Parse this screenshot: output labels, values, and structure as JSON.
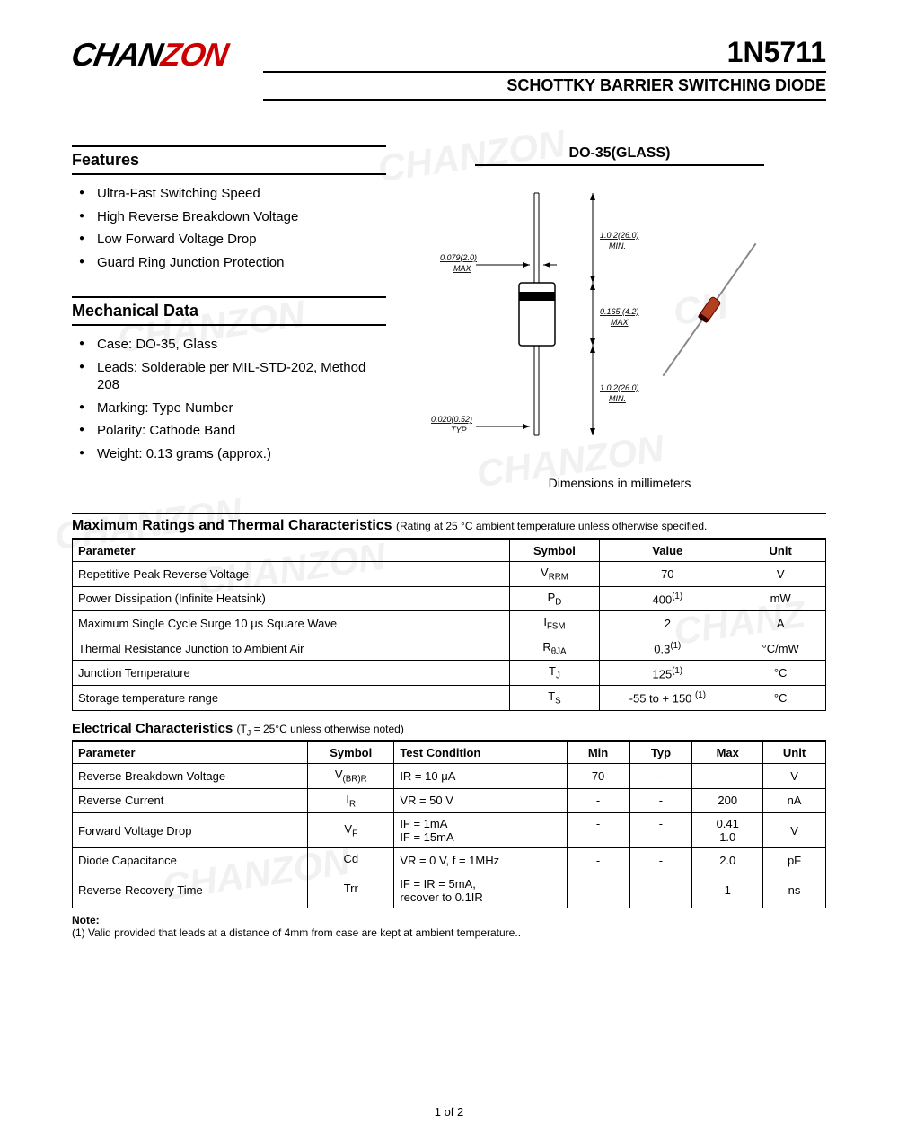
{
  "logo": {
    "part1": "CHAN",
    "part2": "ZON"
  },
  "part_number": "1N5711",
  "subtitle": "SCHOTTKY BARRIER SWITCHING DIODE",
  "features": {
    "title": "Features",
    "items": [
      "Ultra-Fast Switching Speed",
      "High Reverse Breakdown Voltage",
      "Low Forward Voltage Drop",
      "Guard Ring Junction Protection"
    ]
  },
  "mechanical": {
    "title": "Mechanical Data",
    "items": [
      "Case: DO-35, Glass",
      "Leads: Solderable per MIL-STD-202, Method 208",
      "Marking: Type Number",
      "Polarity: Cathode Band",
      "Weight: 0.13 grams (approx.)"
    ]
  },
  "package": {
    "title": "DO-35(GLASS)",
    "caption": "Dimensions in millimeters",
    "dims": {
      "lead_len": "1.0 2(26.0)\nMIN.",
      "lead_dia": "0.079(2.0)\nMAX",
      "body_len": "0.165 (4.2)\nMAX",
      "cathode_band": "0.020(0.52)\nTYP"
    }
  },
  "max_ratings": {
    "title": "Maximum Ratings and Thermal Characteristics",
    "note": "(Rating at  25 °C ambient temperature unless otherwise specified.",
    "columns": [
      "Parameter",
      "Symbol",
      "Value",
      "Unit"
    ],
    "rows": [
      {
        "param": "Repetitive Peak Reverse Voltage",
        "symbol": "V",
        "symsub": "RRM",
        "value": "70",
        "unit": "V"
      },
      {
        "param": "Power Dissipation (Infinite Heatsink)",
        "symbol": "P",
        "symsub": "D",
        "value": "400",
        "valsup": "(1)",
        "unit": "mW"
      },
      {
        "param": "Maximum Single Cycle Surge 10 μs Square Wave",
        "symbol": "I",
        "symsub": "FSM",
        "value": "2",
        "unit": "A"
      },
      {
        "param": "Thermal Resistance Junction to Ambient Air",
        "symbol": "R",
        "symsub": "θJA",
        "value": "0.3",
        "valsup": "(1)",
        "unit": "°C/mW"
      },
      {
        "param": "Junction Temperature",
        "symbol": "T",
        "symsub": "J",
        "value": "125",
        "valsup": "(1)",
        "unit": "°C"
      },
      {
        "param": "Storage temperature range",
        "symbol": "T",
        "symsub": "S",
        "value": "-55 to + 150 ",
        "valsup": "(1)",
        "unit": "°C"
      }
    ]
  },
  "electrical": {
    "title": "Electrical Characteristics",
    "note": "(TJ = 25°C unless otherwise noted)",
    "columns": [
      "Parameter",
      "Symbol",
      "Test Condition",
      "Min",
      "Typ",
      "Max",
      "Unit"
    ],
    "rows": [
      {
        "param": "Reverse Breakdown Voltage",
        "symbol": "V",
        "symsub": "(BR)R",
        "cond": "IR = 10 μA",
        "min": "70",
        "typ": "-",
        "max": "-",
        "unit": "V"
      },
      {
        "param": "Reverse Current",
        "symbol": "I",
        "symsub": "R",
        "cond": "VR = 50 V",
        "min": "-",
        "typ": "-",
        "max": "200",
        "unit": "nA"
      },
      {
        "param": "Forward Voltage Drop",
        "symbol": "V",
        "symsub": "F",
        "cond": "IF = 1mA\nIF = 15mA",
        "min": "-\n-",
        "typ": "-\n-",
        "max": "0.41\n1.0",
        "unit": "V"
      },
      {
        "param": "Diode Capacitance",
        "symbol": "Cd",
        "symsub": "",
        "cond": "VR = 0 V, f = 1MHz",
        "min": "-",
        "typ": "-",
        "max": "2.0",
        "unit": "pF"
      },
      {
        "param": "Reverse Recovery Time",
        "symbol": "Trr",
        "symsub": "",
        "cond": "IF = IR = 5mA,\nrecover to 0.1IR",
        "min": "-",
        "typ": "-",
        "max": "1",
        "unit": "ns"
      }
    ]
  },
  "footnote": {
    "label": "Note:",
    "text": "(1) Valid provided that leads at a distance of 4mm from case are kept at ambient temperature.."
  },
  "page": "1 of 2",
  "colors": {
    "brand_red": "#cc0000",
    "text": "#000000",
    "bg": "#ffffff",
    "watermark": "rgba(200,200,200,0.25)",
    "diode_body": "#b04020"
  }
}
